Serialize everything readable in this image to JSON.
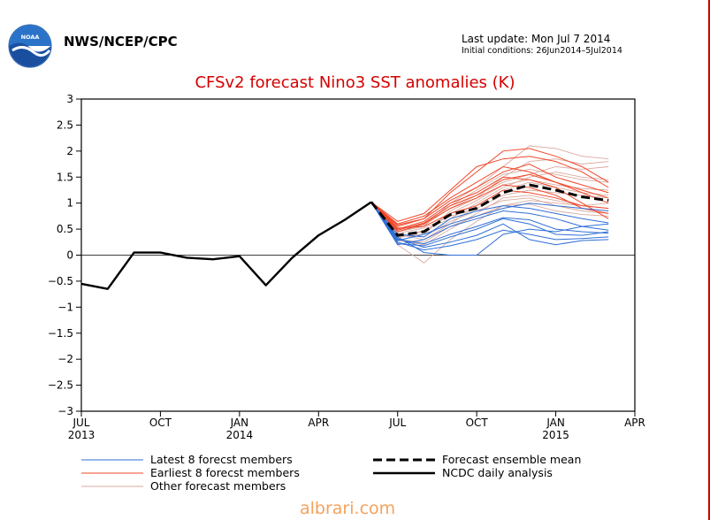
{
  "header": {
    "agency": "NWS/NCEP/CPC",
    "last_update": "Last update: Mon Jul 7 2014",
    "initial_conditions": "Initial conditions: 26Jun2014–5Jul2014",
    "logo_text": "NOAA"
  },
  "watermark": "albrari.com",
  "chart_data": {
    "type": "line",
    "title": "CFSv2 forecast Nino3 SST anomalies (K)",
    "xlabel": "",
    "ylabel": "",
    "ylim": [
      -3,
      3
    ],
    "yticks": [
      3,
      2.5,
      2,
      1.5,
      1,
      0.5,
      0,
      -0.5,
      -1,
      -1.5,
      -2,
      -2.5,
      -3
    ],
    "ytick_labels": [
      "3",
      "2.5",
      "2",
      "1.5",
      "1",
      "0.5",
      "0",
      "−0.5",
      "−1",
      "−1.5",
      "−2",
      "−2.5",
      "−3"
    ],
    "xlim": [
      "Jul 2013",
      "Apr 2015"
    ],
    "x_ticks": [
      {
        "month": "Jul 2013",
        "label": "JUL",
        "sublabel": "2013"
      },
      {
        "month": "Oct 2013",
        "label": "OCT",
        "sublabel": ""
      },
      {
        "month": "Jan 2014",
        "label": "JAN",
        "sublabel": "2014"
      },
      {
        "month": "Apr 2014",
        "label": "APR",
        "sublabel": ""
      },
      {
        "month": "Jul 2014",
        "label": "JUL",
        "sublabel": ""
      },
      {
        "month": "Oct 2014",
        "label": "OCT",
        "sublabel": ""
      },
      {
        "month": "Jan 2015",
        "label": "JAN",
        "sublabel": "2015"
      },
      {
        "month": "Apr 2015",
        "label": "APR",
        "sublabel": ""
      }
    ],
    "grid": false,
    "zero_line": true,
    "legend_position": "bottom",
    "legend": [
      {
        "label": "Latest 8 forecst members",
        "color": "#2f6fd6",
        "style": "thin"
      },
      {
        "label": "Forecast ensemble mean",
        "color": "#000000",
        "style": "dashed"
      },
      {
        "label": "Earliest 8 forecst members",
        "color": "#f0482a",
        "style": "thin"
      },
      {
        "label": "NCDC daily analysis",
        "color": "#000000",
        "style": "thick"
      },
      {
        "label": "Other forecast members",
        "color": "#d9aaa0",
        "style": "thin"
      }
    ],
    "observed": {
      "name": "NCDC daily analysis",
      "x": [
        "Jul 2013",
        "Aug 2013",
        "Sep 2013",
        "Oct 2013",
        "Nov 2013",
        "Dec 2013",
        "Jan 2014",
        "Feb 2014",
        "Mar 2014",
        "Apr 2014",
        "May 2014",
        "Jun 2014"
      ],
      "values": [
        -0.55,
        -0.65,
        0.05,
        0.05,
        -0.05,
        -0.08,
        -0.02,
        -0.58,
        -0.05,
        0.38,
        0.68,
        1.02
      ]
    },
    "ensemble_mean": {
      "name": "Forecast ensemble mean",
      "x": [
        "Jun 2014",
        "Jul 2014",
        "Aug 2014",
        "Sep 2014",
        "Oct 2014",
        "Nov 2014",
        "Dec 2014",
        "Jan 2015",
        "Feb 2015",
        "Mar 2015"
      ],
      "values": [
        1.02,
        0.38,
        0.45,
        0.78,
        0.9,
        1.2,
        1.35,
        1.25,
        1.12,
        1.05
      ]
    },
    "forecast_members": {
      "x": [
        "Jun 2014",
        "Jul 2014",
        "Aug 2014",
        "Sep 2014",
        "Oct 2014",
        "Nov 2014",
        "Dec 2014",
        "Jan 2015",
        "Feb 2015",
        "Mar 2015"
      ],
      "latest_8": [
        [
          1.02,
          0.3,
          0.22,
          0.4,
          0.55,
          0.72,
          0.68,
          0.5,
          0.45,
          0.42
        ],
        [
          1.02,
          0.25,
          0.1,
          0.18,
          0.3,
          0.48,
          0.4,
          0.3,
          0.32,
          0.35
        ],
        [
          1.02,
          0.35,
          0.05,
          0.0,
          0.0,
          0.4,
          0.5,
          0.45,
          0.55,
          0.6
        ],
        [
          1.02,
          0.2,
          0.3,
          0.55,
          0.7,
          0.85,
          0.8,
          0.7,
          0.55,
          0.48
        ],
        [
          1.02,
          0.32,
          0.15,
          0.25,
          0.38,
          0.6,
          0.3,
          0.2,
          0.28,
          0.3
        ],
        [
          1.02,
          0.4,
          0.35,
          0.7,
          0.85,
          0.95,
          0.9,
          0.8,
          0.7,
          0.62
        ],
        [
          1.02,
          0.28,
          0.4,
          0.6,
          0.75,
          0.9,
          1.0,
          0.95,
          0.9,
          0.85
        ],
        [
          1.02,
          0.22,
          0.18,
          0.35,
          0.5,
          0.7,
          0.6,
          0.4,
          0.38,
          0.45
        ]
      ],
      "earliest_8": [
        [
          1.02,
          0.55,
          0.7,
          1.2,
          1.6,
          2.0,
          2.05,
          1.9,
          1.7,
          1.4
        ],
        [
          1.02,
          0.6,
          0.75,
          1.1,
          1.4,
          1.7,
          1.6,
          1.4,
          1.2,
          1.0
        ],
        [
          1.02,
          0.5,
          0.65,
          1.0,
          1.2,
          1.5,
          1.45,
          1.3,
          1.0,
          0.7
        ],
        [
          1.02,
          0.45,
          0.6,
          0.9,
          1.1,
          1.35,
          1.3,
          1.15,
          0.9,
          0.8
        ],
        [
          1.02,
          0.65,
          0.8,
          1.25,
          1.7,
          1.85,
          1.9,
          1.8,
          1.6,
          1.3
        ],
        [
          1.02,
          0.52,
          0.55,
          0.8,
          0.95,
          1.25,
          1.2,
          1.1,
          0.95,
          0.9
        ],
        [
          1.02,
          0.58,
          0.7,
          1.05,
          1.3,
          1.6,
          1.75,
          1.5,
          1.35,
          1.2
        ],
        [
          1.02,
          0.48,
          0.62,
          0.95,
          1.15,
          1.45,
          1.55,
          1.4,
          1.25,
          1.1
        ]
      ],
      "other": [
        [
          1.02,
          0.45,
          0.55,
          1.0,
          1.3,
          1.7,
          2.1,
          2.05,
          1.9,
          1.85
        ],
        [
          1.02,
          0.35,
          0.4,
          0.85,
          1.1,
          1.5,
          1.8,
          1.85,
          1.75,
          1.8
        ],
        [
          1.02,
          0.4,
          0.3,
          0.6,
          0.95,
          1.25,
          1.4,
          1.3,
          1.2,
          1.15
        ],
        [
          1.02,
          0.28,
          0.2,
          0.5,
          0.8,
          1.1,
          1.15,
          1.05,
          0.95,
          0.9
        ],
        [
          1.02,
          0.2,
          -0.15,
          0.3,
          0.65,
          0.95,
          1.05,
          1.0,
          0.95,
          1.0
        ],
        [
          1.02,
          0.5,
          0.6,
          0.95,
          1.25,
          1.55,
          1.65,
          1.55,
          1.45,
          1.4
        ],
        [
          1.02,
          0.32,
          0.48,
          0.7,
          1.0,
          1.3,
          1.5,
          1.6,
          1.5,
          1.45
        ],
        [
          1.02,
          0.42,
          0.52,
          0.75,
          0.9,
          1.15,
          1.25,
          1.2,
          1.15,
          1.1
        ],
        [
          1.02,
          0.38,
          0.35,
          0.65,
          0.85,
          1.05,
          1.1,
          0.95,
          0.85,
          0.8
        ],
        [
          1.02,
          0.3,
          0.25,
          0.55,
          0.75,
          0.95,
          0.98,
          0.85,
          0.78,
          0.75
        ],
        [
          1.02,
          0.45,
          0.58,
          0.9,
          1.15,
          1.4,
          1.55,
          1.7,
          1.65,
          1.7
        ],
        [
          1.02,
          0.36,
          0.45,
          0.8,
          1.05,
          1.35,
          1.45,
          1.35,
          1.28,
          1.25
        ]
      ]
    }
  }
}
